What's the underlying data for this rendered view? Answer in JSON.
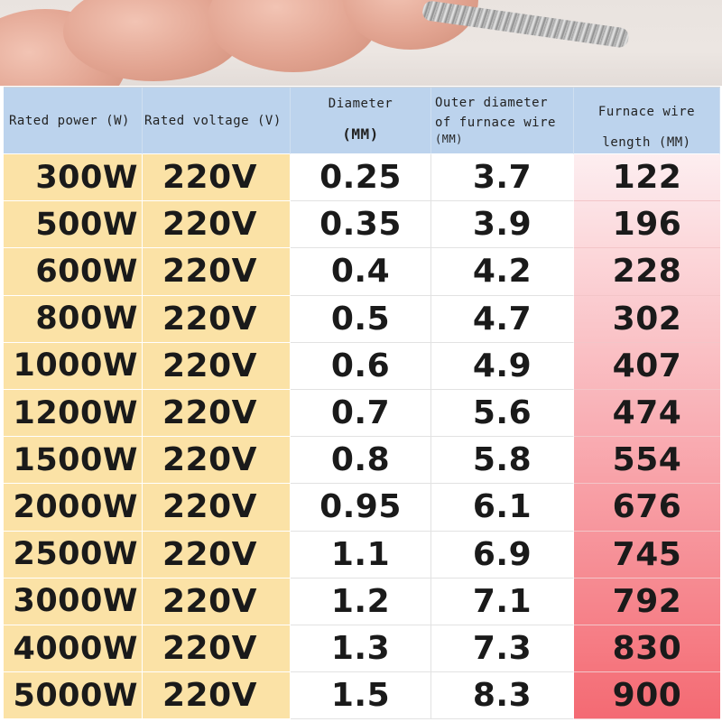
{
  "headers": {
    "col1": "Rated power (W)",
    "col2": "Rated voltage (V)",
    "col3_line1": "Diameter",
    "col3_line2": "(MM)",
    "col4_line1": "Outer diameter",
    "col4_line2": "of furnace wire",
    "col4_line3": "(MM)",
    "col5_line1": "Furnace wire",
    "col5_line2": "length (MM)"
  },
  "rows": [
    {
      "power": "300W",
      "voltage": "220V",
      "diameter": "0.25",
      "outer": "3.7",
      "length": "122"
    },
    {
      "power": "500W",
      "voltage": "220V",
      "diameter": "0.35",
      "outer": "3.9",
      "length": "196"
    },
    {
      "power": "600W",
      "voltage": "220V",
      "diameter": "0.4",
      "outer": "4.2",
      "length": "228"
    },
    {
      "power": "800W",
      "voltage": "220V",
      "diameter": "0.5",
      "outer": "4.7",
      "length": "302"
    },
    {
      "power": "1000W",
      "voltage": "220V",
      "diameter": "0.6",
      "outer": "4.9",
      "length": "407"
    },
    {
      "power": "1200W",
      "voltage": "220V",
      "diameter": "0.7",
      "outer": "5.6",
      "length": "474"
    },
    {
      "power": "1500W",
      "voltage": "220V",
      "diameter": "0.8",
      "outer": "5.8",
      "length": "554"
    },
    {
      "power": "2000W",
      "voltage": "220V",
      "diameter": "0.95",
      "outer": "6.1",
      "length": "676"
    },
    {
      "power": "2500W",
      "voltage": "220V",
      "diameter": "1.1",
      "outer": "6.9",
      "length": "745"
    },
    {
      "power": "3000W",
      "voltage": "220V",
      "diameter": "1.2",
      "outer": "7.1",
      "length": "792"
    },
    {
      "power": "4000W",
      "voltage": "220V",
      "diameter": "1.3",
      "outer": "7.3",
      "length": "830"
    },
    {
      "power": "5000W",
      "voltage": "220V",
      "diameter": "1.5",
      "outer": "8.3",
      "length": "900"
    }
  ],
  "colors": {
    "header_bg": "#bcd3ed",
    "yellow_col": "#fbe2a6",
    "length_gradient_start": "#fdeef0",
    "length_gradient_end": "#f46a73"
  },
  "icons": {
    "photo": "hand-holding-heating-coil"
  }
}
